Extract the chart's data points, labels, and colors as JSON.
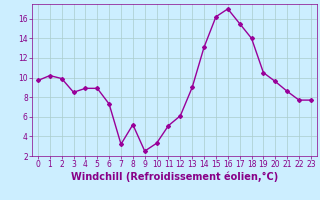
{
  "x": [
    0,
    1,
    2,
    3,
    4,
    5,
    6,
    7,
    8,
    9,
    10,
    11,
    12,
    13,
    14,
    15,
    16,
    17,
    18,
    19,
    20,
    21,
    22,
    23
  ],
  "y": [
    9.7,
    10.2,
    9.9,
    8.5,
    8.9,
    8.9,
    7.3,
    3.2,
    5.2,
    2.5,
    3.3,
    5.1,
    6.1,
    9.0,
    13.1,
    16.2,
    17.0,
    15.5,
    14.0,
    10.5,
    9.6,
    8.6,
    7.7,
    7.7
  ],
  "line_color": "#990099",
  "marker": "D",
  "marker_size": 2.0,
  "bg_color": "#cceeff",
  "grid_color": "#aacccc",
  "xlabel": "Windchill (Refroidissement éolien,°C)",
  "xlabel_color": "#880088",
  "tick_color": "#880088",
  "ylim": [
    2,
    17.5
  ],
  "xlim": [
    -0.5,
    23.5
  ],
  "yticks": [
    2,
    4,
    6,
    8,
    10,
    12,
    14,
    16
  ],
  "xticks": [
    0,
    1,
    2,
    3,
    4,
    5,
    6,
    7,
    8,
    9,
    10,
    11,
    12,
    13,
    14,
    15,
    16,
    17,
    18,
    19,
    20,
    21,
    22,
    23
  ],
  "tick_fontsize": 5.5,
  "xlabel_fontsize": 7.0,
  "linewidth": 1.0
}
